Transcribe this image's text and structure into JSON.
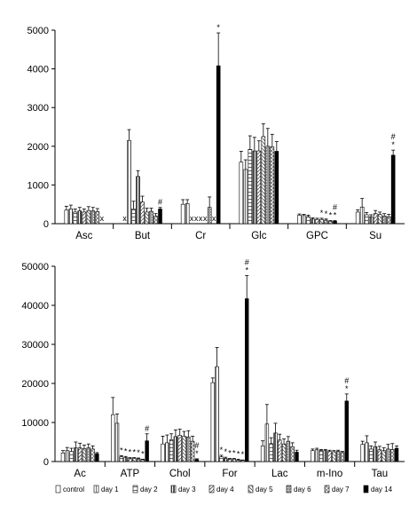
{
  "legend": [
    {
      "label": "control",
      "fill": "#ffffff"
    },
    {
      "label": "day 1",
      "fill": "#dddddd"
    },
    {
      "label": "day 2",
      "fill": "#ffffff"
    },
    {
      "label": "day 3",
      "fill": "#bdbdbd"
    },
    {
      "label": "day 4",
      "fill": "#efefef"
    },
    {
      "label": "day 5",
      "fill": "#cfcfcf"
    },
    {
      "label": "day 6",
      "fill": "#8f8f8f"
    },
    {
      "label": "day 7",
      "fill": "#bfbfbf"
    },
    {
      "label": "day 14",
      "fill": "#000000"
    }
  ],
  "chart_data": [
    {
      "type": "bar",
      "ylim": [
        0,
        5000
      ],
      "yticks": [
        "0",
        "1000",
        "2000",
        "3000",
        "4000",
        "5000"
      ],
      "categories": [
        "Asc",
        "But",
        "Cr",
        "Glc",
        "GPC",
        "Su"
      ],
      "series_names": [
        "control",
        "day 1",
        "day 2",
        "day 3",
        "day 4",
        "day 5",
        "day 6",
        "day 7",
        "day 14"
      ],
      "values": [
        [
          350,
          380,
          300,
          330,
          300,
          340,
          330,
          310,
          null
        ],
        [
          null,
          2150,
          380,
          1220,
          560,
          300,
          320,
          200,
          380
        ],
        [
          500,
          520,
          null,
          null,
          null,
          null,
          420,
          null,
          4080
        ],
        [
          1590,
          1400,
          1920,
          1880,
          1880,
          2250,
          2000,
          1990,
          1870
        ],
        [
          220,
          210,
          180,
          120,
          110,
          110,
          90,
          60,
          60
        ],
        [
          300,
          430,
          230,
          180,
          260,
          240,
          200,
          180,
          1770
        ]
      ],
      "errors": [
        [
          100,
          100,
          80,
          90,
          80,
          100,
          90,
          80,
          null
        ],
        [
          null,
          280,
          200,
          150,
          150,
          100,
          80,
          60,
          40
        ],
        [
          120,
          100,
          null,
          null,
          null,
          null,
          270,
          null,
          850
        ],
        [
          280,
          250,
          350,
          350,
          260,
          330,
          460,
          320,
          250
        ],
        [
          30,
          30,
          40,
          30,
          30,
          30,
          30,
          20,
          20
        ],
        [
          60,
          220,
          60,
          50,
          80,
          60,
          60,
          60,
          130
        ]
      ],
      "markers": [
        [
          null,
          null,
          null,
          null,
          null,
          null,
          null,
          null,
          "x"
        ],
        [
          "x",
          null,
          null,
          null,
          null,
          null,
          null,
          null,
          "#"
        ],
        [
          null,
          null,
          "x",
          "x",
          "x",
          "x",
          null,
          "x",
          "*"
        ],
        [
          null,
          null,
          null,
          null,
          null,
          null,
          null,
          null,
          null
        ],
        [
          null,
          null,
          null,
          null,
          null,
          "*",
          "*",
          "*",
          "#\n*"
        ],
        [
          null,
          null,
          null,
          null,
          null,
          null,
          null,
          null,
          "#\n*"
        ]
      ]
    },
    {
      "type": "bar",
      "ylim": [
        0,
        50000
      ],
      "yticks": [
        "0",
        "10000",
        "20000",
        "30000",
        "40000",
        "50000"
      ],
      "categories": [
        "Ac",
        "ATP",
        "Chol",
        "For",
        "Lac",
        "m-Ino",
        "Tau"
      ],
      "series_names": [
        "control",
        "day 1",
        "day 2",
        "day 3",
        "day 4",
        "day 5",
        "day 6",
        "day 7",
        "day 14"
      ],
      "values": [
        [
          2200,
          2800,
          2600,
          3500,
          3500,
          3300,
          3500,
          3200,
          2000
        ],
        [
          12000,
          9800,
          1200,
          1000,
          800,
          800,
          700,
          500,
          5300
        ],
        [
          4500,
          4800,
          5600,
          6400,
          6700,
          6500,
          6300,
          5200,
          500
        ],
        [
          20200,
          24300,
          1200,
          800,
          600,
          600,
          400,
          300,
          41700
        ],
        [
          4000,
          9600,
          4600,
          7300,
          5500,
          4500,
          5200,
          3800,
          2400
        ],
        [
          2800,
          3000,
          2800,
          2800,
          2600,
          2500,
          2600,
          2300,
          15500
        ],
        [
          4400,
          4800,
          3200,
          3800,
          3000,
          2800,
          3200,
          3100,
          3400
        ]
      ],
      "errors": [
        [
          600,
          800,
          800,
          1500,
          1200,
          900,
          1000,
          800,
          300
        ],
        [
          4400,
          2400,
          300,
          300,
          200,
          200,
          200,
          100,
          1800
        ],
        [
          2000,
          2000,
          1500,
          1700,
          1600,
          1200,
          1600,
          1300,
          200
        ],
        [
          1200,
          4900,
          400,
          300,
          200,
          200,
          200,
          100,
          5900
        ],
        [
          1300,
          5000,
          1500,
          2500,
          1500,
          1300,
          1200,
          1000,
          500
        ],
        [
          400,
          400,
          300,
          300,
          300,
          300,
          300,
          300,
          1800
        ],
        [
          800,
          1800,
          800,
          1200,
          900,
          700,
          1200,
          1500,
          600
        ]
      ],
      "markers": [
        [
          null,
          null,
          null,
          null,
          null,
          null,
          null,
          null,
          null
        ],
        [
          null,
          null,
          "*",
          "*",
          "*",
          "*",
          "*",
          "*",
          "#"
        ],
        [
          null,
          null,
          null,
          null,
          null,
          null,
          null,
          null,
          "#\n*"
        ],
        [
          null,
          null,
          "*",
          "*",
          "*",
          "*",
          "*",
          "*",
          "#\n*"
        ],
        [
          null,
          null,
          null,
          null,
          null,
          null,
          null,
          null,
          null
        ],
        [
          null,
          null,
          null,
          null,
          null,
          null,
          null,
          null,
          "#\n*"
        ],
        [
          null,
          null,
          null,
          null,
          null,
          null,
          null,
          null,
          null
        ]
      ]
    }
  ]
}
